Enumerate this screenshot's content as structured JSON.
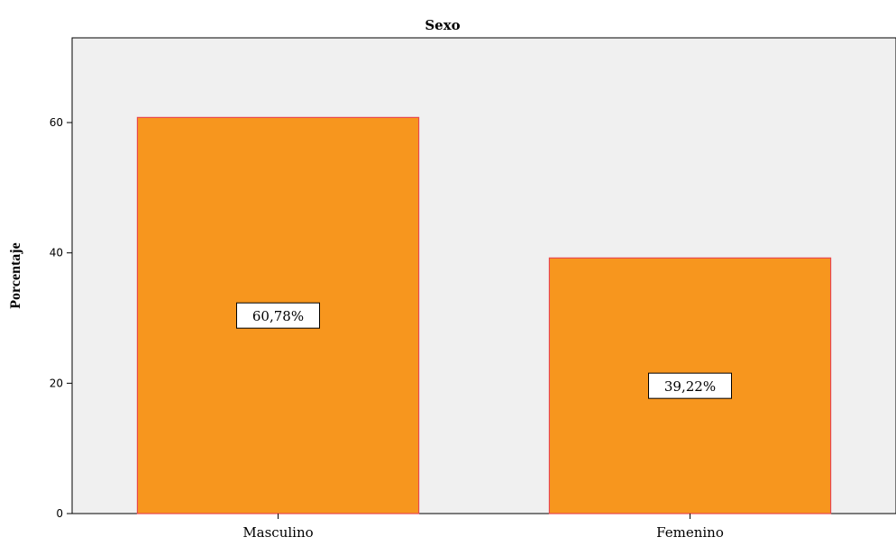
{
  "chart_data": {
    "type": "bar",
    "title": "Sexo",
    "xlabel": "",
    "ylabel": "Porcentaje",
    "categories": [
      "Masculino",
      "Femenino"
    ],
    "values": [
      60.78,
      39.22
    ],
    "value_labels": [
      "60,78%",
      "39,22%"
    ],
    "ylim": [
      0,
      73
    ],
    "yticks": [
      0,
      20,
      40,
      60
    ],
    "ytick_labels": [
      "0",
      "20",
      "40",
      "60"
    ],
    "grid": false,
    "legend": "none",
    "colors": {
      "bar_fill": "#F7961E",
      "bar_stroke": "#E8484C",
      "plot_background": "#F0F0F0",
      "axis": "#000000",
      "label_box_fill": "#FFFFFF"
    }
  }
}
